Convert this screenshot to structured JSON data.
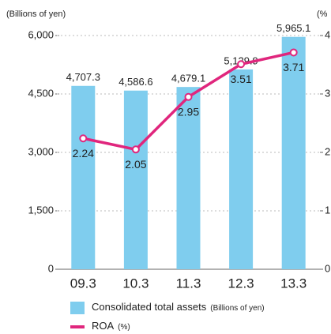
{
  "chart_data": {
    "type": "bar-line",
    "y_axis_label": "(Billions of yen)",
    "y2_axis_label": "(%",
    "categories": [
      "09.3",
      "10.3",
      "11.3",
      "12.3",
      "13.3"
    ],
    "series": [
      {
        "name": "Consolidated total assets",
        "unit": "(Billions of yen)",
        "type": "bar",
        "color": "#7fcdee",
        "values": [
          4707.3,
          4586.6,
          4679.1,
          5129.9,
          5965.1
        ],
        "value_labels": [
          "4,707.3",
          "4,586.6",
          "4,679.1",
          "5,129.9",
          "5,965.1"
        ]
      },
      {
        "name": "ROA",
        "unit": "(%)",
        "type": "line",
        "axis": "y2",
        "color": "#e0267d",
        "values": [
          2.24,
          2.05,
          2.95,
          3.51,
          3.71
        ]
      }
    ],
    "ylim": [
      0,
      6000
    ],
    "yticks": [
      0,
      {
        "value": 1500,
        "label": "1,500"
      },
      {
        "value": 3000,
        "label": "3,000"
      },
      {
        "value": 4500,
        "label": "4,500"
      },
      {
        "value": 6000,
        "label": "6,000"
      }
    ],
    "y2lim": [
      0,
      4
    ],
    "y2ticks": [
      0,
      1,
      2,
      3,
      4
    ],
    "grid": true
  }
}
